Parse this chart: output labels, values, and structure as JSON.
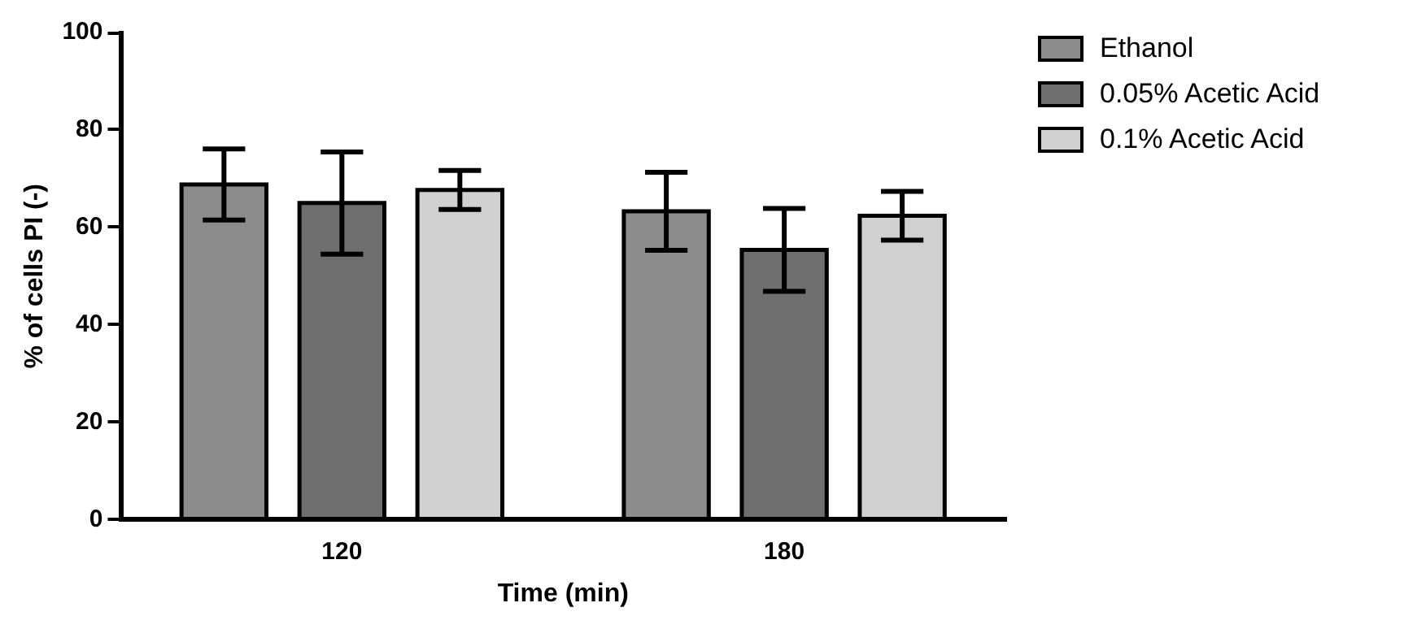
{
  "chart_data": {
    "type": "bar",
    "xlabel": "Time (min)",
    "ylabel": "% of cells PI (-)",
    "categories": [
      "120",
      "180"
    ],
    "series": [
      {
        "name": "Ethanol",
        "color": "#8c8c8c",
        "values": [
          68.8,
          63.3
        ],
        "errors": [
          7.3,
          8
        ]
      },
      {
        "name": "0.05% Acetic Acid",
        "color": "#6e6e6e",
        "values": [
          65,
          55.4
        ],
        "errors": [
          10.5,
          8.5
        ]
      },
      {
        "name": "0.1% Acetic Acid",
        "color": "#d0d0d0",
        "values": [
          67.7,
          62.4
        ],
        "errors": [
          4,
          5
        ]
      }
    ],
    "ylim": [
      0,
      100
    ],
    "yticks": [
      0,
      20,
      40,
      60,
      80,
      100
    ],
    "grid": false,
    "legend": "top right"
  }
}
